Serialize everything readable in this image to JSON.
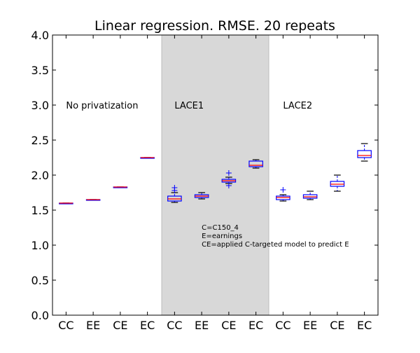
{
  "chart_data": {
    "type": "box",
    "title": "Linear regression. RMSE. 20 repeats",
    "xlabel": "",
    "ylabel": "",
    "ylim": [
      0.0,
      4.0
    ],
    "yticks": [
      "0.0",
      "0.5",
      "1.0",
      "1.5",
      "2.0",
      "2.5",
      "3.0",
      "3.5",
      "4.0"
    ],
    "categories": [
      "CC",
      "EE",
      "CE",
      "EC",
      "CC",
      "EE",
      "CE",
      "EC",
      "CC",
      "EE",
      "CE",
      "EC"
    ],
    "groups": [
      {
        "label": "No privatization",
        "start": 0,
        "end": 3,
        "shaded": false
      },
      {
        "label": "LACE1",
        "start": 4,
        "end": 7,
        "shaded": true
      },
      {
        "label": "LACE2",
        "start": 8,
        "end": 11,
        "shaded": false
      }
    ],
    "note_lines": [
      "C=C150_4",
      "E=earnings",
      "CE=applied C-targeted model to predict E"
    ],
    "boxes": [
      {
        "min": 1.6,
        "q1": 1.6,
        "median": 1.6,
        "q3": 1.6,
        "max": 1.6,
        "outliers": []
      },
      {
        "min": 1.65,
        "q1": 1.65,
        "median": 1.65,
        "q3": 1.65,
        "max": 1.65,
        "outliers": []
      },
      {
        "min": 1.83,
        "q1": 1.83,
        "median": 1.83,
        "q3": 1.83,
        "max": 1.83,
        "outliers": []
      },
      {
        "min": 2.25,
        "q1": 2.25,
        "median": 2.25,
        "q3": 2.25,
        "max": 2.25,
        "outliers": []
      },
      {
        "min": 1.61,
        "q1": 1.63,
        "median": 1.66,
        "q3": 1.7,
        "max": 1.75,
        "outliers": [
          1.78,
          1.82
        ]
      },
      {
        "min": 1.66,
        "q1": 1.68,
        "median": 1.7,
        "q3": 1.72,
        "max": 1.75,
        "outliers": []
      },
      {
        "min": 1.88,
        "q1": 1.9,
        "median": 1.92,
        "q3": 1.94,
        "max": 1.97,
        "outliers": [
          1.85,
          2.03
        ]
      },
      {
        "min": 2.1,
        "q1": 2.12,
        "median": 2.14,
        "q3": 2.2,
        "max": 2.22,
        "outliers": []
      },
      {
        "min": 1.63,
        "q1": 1.65,
        "median": 1.68,
        "q3": 1.7,
        "max": 1.72,
        "outliers": [
          1.79
        ]
      },
      {
        "min": 1.65,
        "q1": 1.67,
        "median": 1.69,
        "q3": 1.72,
        "max": 1.77,
        "outliers": []
      },
      {
        "min": 1.77,
        "q1": 1.84,
        "median": 1.87,
        "q3": 1.91,
        "max": 2.0,
        "outliers": []
      },
      {
        "min": 2.2,
        "q1": 2.25,
        "median": 2.28,
        "q3": 2.35,
        "max": 2.45,
        "outliers": []
      }
    ],
    "colors": {
      "box": "#0000ff",
      "median": "#ff0000",
      "outlier": "#0000ff",
      "shade": "#d8d8d8",
      "axes": "#000000"
    },
    "grid": false
  }
}
